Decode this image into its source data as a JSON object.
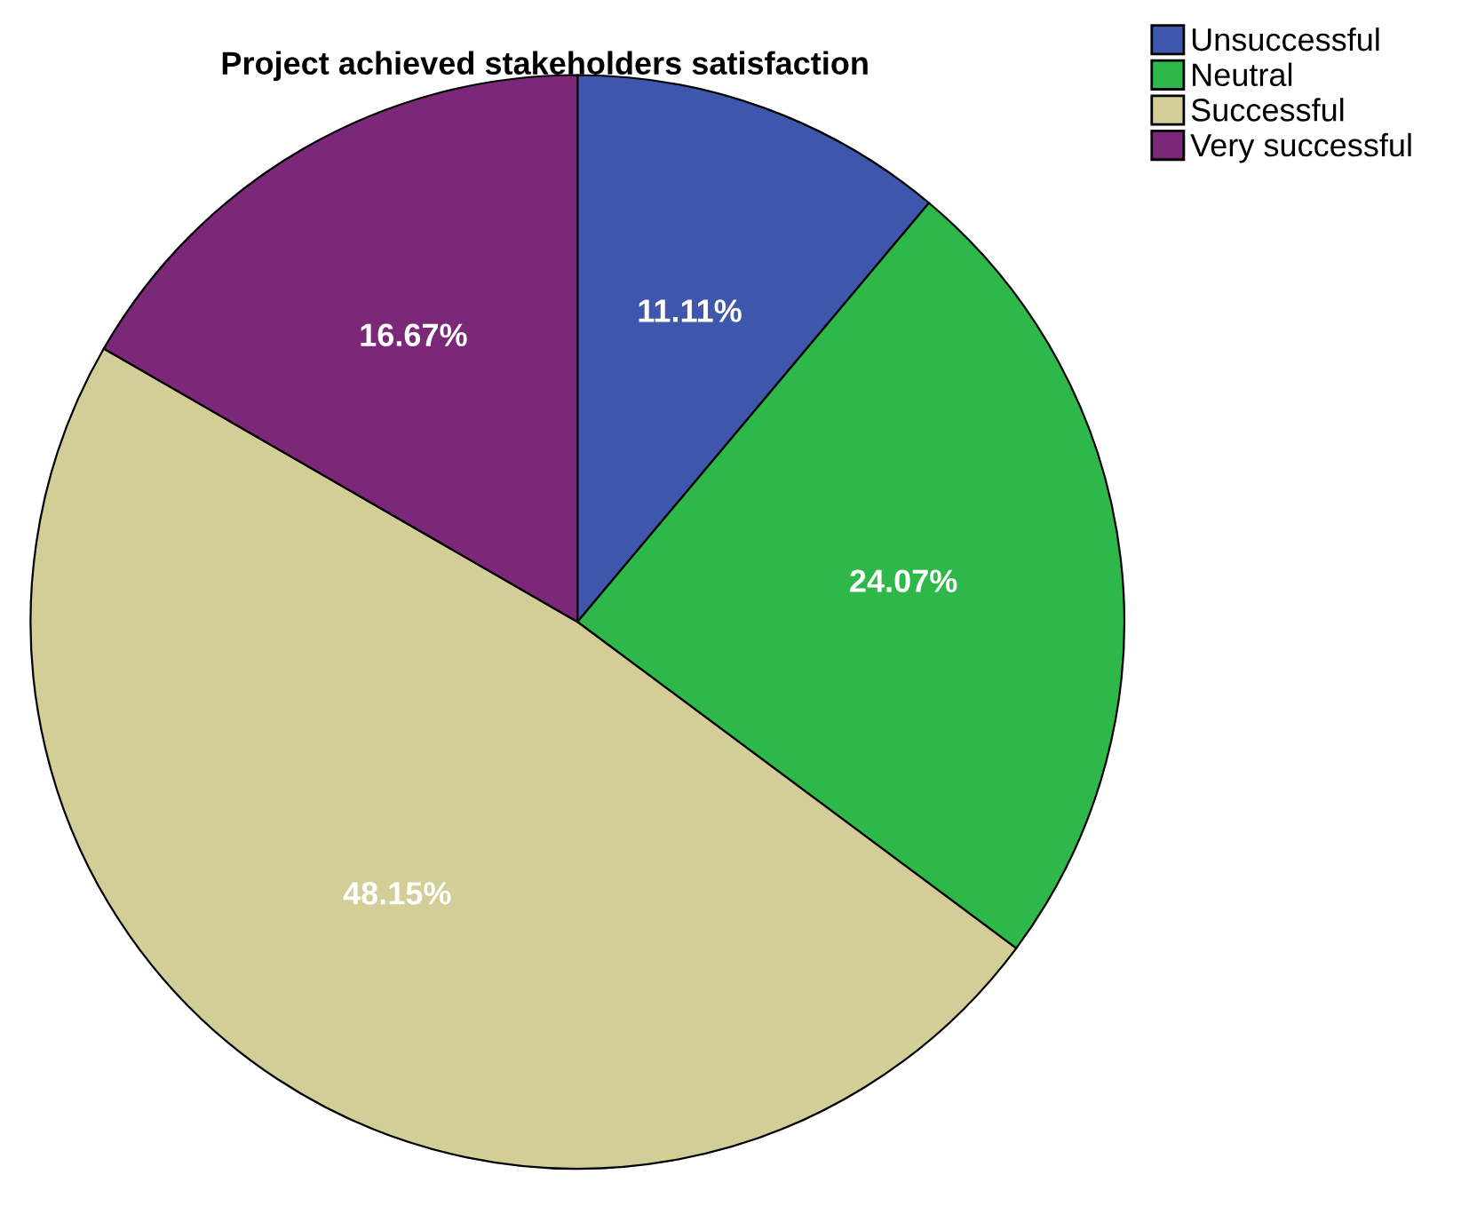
{
  "chart_data": {
    "type": "pie",
    "title": "Project achieved stakeholders satisfaction",
    "categories": [
      "Unsuccessful",
      "Neutral",
      "Successful",
      "Very successful"
    ],
    "values": [
      11.11,
      24.07,
      48.15,
      16.67
    ],
    "colors": [
      "#3f56ad",
      "#2eb84a",
      "#d3cd98",
      "#7b2878"
    ],
    "value_labels": [
      "11.11%",
      "24.07%",
      "48.15%",
      "16.67%"
    ],
    "legend": "top right"
  }
}
